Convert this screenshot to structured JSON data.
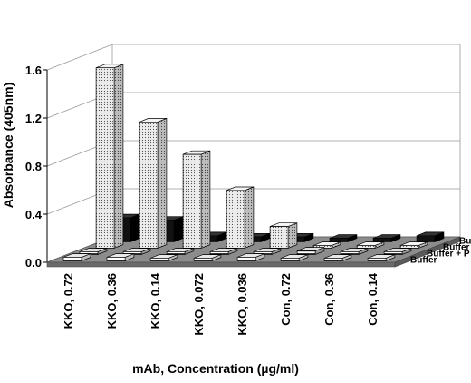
{
  "chart_data": {
    "type": "bar",
    "title": "",
    "xlabel": "mAb, Concentration (µg/ml)",
    "ylabel": "Absorbance (405nm)",
    "ylim": [
      0,
      1.6
    ],
    "yticks": [
      "0.0",
      "0.4",
      "0.8",
      "1.2",
      "1.6"
    ],
    "grid": true,
    "three_d": true,
    "legend_position": "right depth axis",
    "categories": [
      "KKO, 0.72",
      "KKO, 0.36",
      "KKO, 0.14",
      "KKO, 0.072",
      "KKO, 0.036",
      "Con, 0.72",
      "Con, 0.36",
      "Con, 0.14"
    ],
    "series": [
      {
        "name": "Buffer",
        "pattern": "white",
        "values": [
          0.03,
          0.03,
          0.02,
          0.02,
          0.03,
          0.02,
          0.02,
          0.02
        ]
      },
      {
        "name": "Buffer + P",
        "pattern": "striped",
        "values": [
          0.02,
          0.02,
          0.02,
          0.02,
          0.02,
          0.03,
          0.02,
          0.02
        ]
      },
      {
        "name": "Buffer + H",
        "pattern": "dotted-dense",
        "values": [
          1.5,
          1.05,
          0.78,
          0.48,
          0.18,
          0.02,
          0.02,
          0.02
        ]
      },
      {
        "name": "Buffer + P/H",
        "pattern": "black",
        "values": [
          0.2,
          0.18,
          0.05,
          0.04,
          0.04,
          0.03,
          0.03,
          0.05
        ]
      }
    ]
  }
}
